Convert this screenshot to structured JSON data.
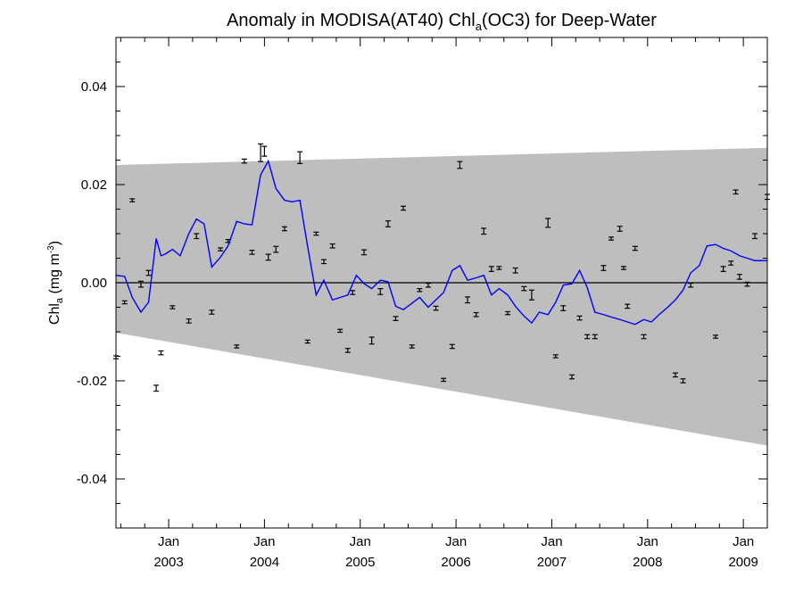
{
  "chart_data": {
    "type": "line",
    "title": {
      "prefix": "Anomaly in MODISA(AT40) Chl",
      "subscript": "a",
      "suffix": "(OC3) for Deep-Water"
    },
    "ylabel": {
      "main": "Chl",
      "subscript": "a",
      "unit_open": " (mg m",
      "superscript": "-3",
      "unit_close": ")"
    },
    "xlim": [
      2002.45,
      2009.25
    ],
    "ylim": [
      -0.05,
      0.05
    ],
    "grid": false,
    "y_ticks": [
      {
        "value": 0.04,
        "label": "0.04"
      },
      {
        "value": 0.02,
        "label": "0.02"
      },
      {
        "value": 0.0,
        "label": "0.00"
      },
      {
        "value": -0.02,
        "label": "-0.02"
      },
      {
        "value": -0.04,
        "label": "-0.04"
      }
    ],
    "x_ticks": [
      {
        "value": 2003.0,
        "month": "Jan",
        "year": "2003"
      },
      {
        "value": 2004.0,
        "month": "Jan",
        "year": "2004"
      },
      {
        "value": 2005.0,
        "month": "Jan",
        "year": "2005"
      },
      {
        "value": 2006.0,
        "month": "Jan",
        "year": "2006"
      },
      {
        "value": 2007.0,
        "month": "Jan",
        "year": "2007"
      },
      {
        "value": 2008.0,
        "month": "Jan",
        "year": "2008"
      },
      {
        "value": 2009.0,
        "month": "Jan",
        "year": "2009"
      }
    ],
    "band": {
      "x": [
        2002.45,
        2009.25
      ],
      "upper": [
        0.024,
        0.0275
      ],
      "lower": [
        -0.0102,
        -0.0332
      ],
      "color": "#bebebe"
    },
    "zero_line": 0.0,
    "series": [
      {
        "color": "#0000ff",
        "x": [
          2002.45,
          2002.54,
          2002.62,
          2002.71,
          2002.79,
          2002.87,
          2002.92,
          2002.96,
          2003.04,
          2003.12,
          2003.21,
          2003.29,
          2003.37,
          2003.45,
          2003.54,
          2003.62,
          2003.71,
          2003.79,
          2003.87,
          2003.96,
          2004.04,
          2004.12,
          2004.21,
          2004.29,
          2004.37,
          2004.45,
          2004.54,
          2004.62,
          2004.71,
          2004.79,
          2004.87,
          2004.96,
          2005.04,
          2005.12,
          2005.21,
          2005.29,
          2005.37,
          2005.45,
          2005.54,
          2005.62,
          2005.71,
          2005.79,
          2005.87,
          2005.96,
          2006.04,
          2006.12,
          2006.21,
          2006.29,
          2006.37,
          2006.45,
          2006.54,
          2006.62,
          2006.71,
          2006.79,
          2006.87,
          2006.96,
          2007.04,
          2007.12,
          2007.21,
          2007.29,
          2007.37,
          2007.45,
          2007.54,
          2007.62,
          2007.71,
          2007.79,
          2007.87,
          2007.96,
          2008.04,
          2008.12,
          2008.21,
          2008.29,
          2008.37,
          2008.45,
          2008.54,
          2008.62,
          2008.71,
          2008.79,
          2008.87,
          2008.96,
          2009.04,
          2009.12,
          2009.21,
          2009.25
        ],
        "y": [
          0.0015,
          0.0013,
          -0.003,
          -0.006,
          -0.004,
          0.009,
          0.0055,
          0.0058,
          0.0068,
          0.0055,
          0.01,
          0.013,
          0.012,
          0.0032,
          0.0052,
          0.0075,
          0.0125,
          0.012,
          0.0118,
          0.022,
          0.0248,
          0.0192,
          0.0168,
          0.0165,
          0.0168,
          0.0075,
          -0.0025,
          0.0005,
          -0.0035,
          -0.003,
          -0.0025,
          0.0015,
          -0.0002,
          -0.0012,
          0.0005,
          0.0002,
          -0.0048,
          -0.0055,
          -0.0042,
          -0.003,
          -0.005,
          -0.0035,
          -0.002,
          0.0025,
          0.0035,
          0.0005,
          0.001,
          0.0015,
          -0.0025,
          -0.0012,
          -0.0025,
          -0.0048,
          -0.0068,
          -0.0082,
          -0.006,
          -0.0065,
          -0.004,
          -0.0005,
          -0.0002,
          0.0025,
          -0.001,
          -0.006,
          -0.0065,
          -0.007,
          -0.0075,
          -0.008,
          -0.0085,
          -0.0075,
          -0.008,
          -0.0065,
          -0.005,
          -0.0035,
          -0.0015,
          0.002,
          0.0035,
          0.0075,
          0.0078,
          0.007,
          0.0065,
          0.0055,
          0.005,
          0.0045,
          0.0045,
          0.0045
        ]
      }
    ],
    "error_bars": {
      "color": "#000000",
      "points": [
        {
          "x": 2002.45,
          "y": -0.0152,
          "err": 0.0003
        },
        {
          "x": 2002.54,
          "y": -0.004,
          "err": 0.0003
        },
        {
          "x": 2002.62,
          "y": 0.0168,
          "err": 0.0003
        },
        {
          "x": 2002.71,
          "y": -0.0003,
          "err": 0.0006
        },
        {
          "x": 2002.79,
          "y": 0.002,
          "err": 0.0005
        },
        {
          "x": 2002.87,
          "y": -0.0215,
          "err": 0.0006
        },
        {
          "x": 2002.92,
          "y": -0.0143,
          "err": 0.0004
        },
        {
          "x": 2003.04,
          "y": -0.005,
          "err": 0.0003
        },
        {
          "x": 2003.21,
          "y": -0.0078,
          "err": 0.0004
        },
        {
          "x": 2003.29,
          "y": 0.0095,
          "err": 0.0005
        },
        {
          "x": 2003.45,
          "y": -0.006,
          "err": 0.0004
        },
        {
          "x": 2003.54,
          "y": 0.0068,
          "err": 0.0003
        },
        {
          "x": 2003.62,
          "y": 0.0085,
          "err": 0.0003
        },
        {
          "x": 2003.71,
          "y": -0.013,
          "err": 0.0003
        },
        {
          "x": 2003.79,
          "y": 0.0248,
          "err": 0.0004
        },
        {
          "x": 2003.87,
          "y": 0.0062,
          "err": 0.0004
        },
        {
          "x": 2003.96,
          "y": 0.0265,
          "err": 0.0018
        },
        {
          "x": 2004.0,
          "y": 0.0268,
          "err": 0.001
        },
        {
          "x": 2004.04,
          "y": 0.0052,
          "err": 0.0006
        },
        {
          "x": 2004.12,
          "y": 0.0068,
          "err": 0.0006
        },
        {
          "x": 2004.21,
          "y": 0.011,
          "err": 0.0004
        },
        {
          "x": 2004.37,
          "y": 0.0255,
          "err": 0.0012
        },
        {
          "x": 2004.45,
          "y": -0.012,
          "err": 0.0003
        },
        {
          "x": 2004.54,
          "y": 0.01,
          "err": 0.0003
        },
        {
          "x": 2004.62,
          "y": 0.0043,
          "err": 0.0004
        },
        {
          "x": 2004.71,
          "y": 0.0075,
          "err": 0.0004
        },
        {
          "x": 2004.79,
          "y": -0.0098,
          "err": 0.0003
        },
        {
          "x": 2004.87,
          "y": -0.0138,
          "err": 0.0004
        },
        {
          "x": 2004.92,
          "y": -0.002,
          "err": 0.0004
        },
        {
          "x": 2005.04,
          "y": 0.0062,
          "err": 0.0005
        },
        {
          "x": 2005.12,
          "y": -0.0118,
          "err": 0.0007
        },
        {
          "x": 2005.21,
          "y": -0.0018,
          "err": 0.0006
        },
        {
          "x": 2005.29,
          "y": 0.012,
          "err": 0.0006
        },
        {
          "x": 2005.37,
          "y": -0.0073,
          "err": 0.0004
        },
        {
          "x": 2005.45,
          "y": 0.0152,
          "err": 0.0004
        },
        {
          "x": 2005.54,
          "y": -0.013,
          "err": 0.0003
        },
        {
          "x": 2005.62,
          "y": -0.0015,
          "err": 0.0003
        },
        {
          "x": 2005.71,
          "y": -0.0005,
          "err": 0.0004
        },
        {
          "x": 2005.79,
          "y": -0.0052,
          "err": 0.0004
        },
        {
          "x": 2005.87,
          "y": -0.0198,
          "err": 0.0003
        },
        {
          "x": 2005.96,
          "y": -0.013,
          "err": 0.0004
        },
        {
          "x": 2006.04,
          "y": 0.024,
          "err": 0.0007
        },
        {
          "x": 2006.12,
          "y": -0.0035,
          "err": 0.0006
        },
        {
          "x": 2006.21,
          "y": -0.0065,
          "err": 0.0004
        },
        {
          "x": 2006.29,
          "y": 0.0105,
          "err": 0.0006
        },
        {
          "x": 2006.37,
          "y": 0.0028,
          "err": 0.0005
        },
        {
          "x": 2006.45,
          "y": 0.003,
          "err": 0.0003
        },
        {
          "x": 2006.54,
          "y": -0.0062,
          "err": 0.0003
        },
        {
          "x": 2006.62,
          "y": 0.0025,
          "err": 0.0005
        },
        {
          "x": 2006.71,
          "y": -0.0012,
          "err": 0.0004
        },
        {
          "x": 2006.79,
          "y": -0.0025,
          "err": 0.001
        },
        {
          "x": 2006.96,
          "y": 0.0122,
          "err": 0.0009
        },
        {
          "x": 2007.04,
          "y": -0.015,
          "err": 0.0003
        },
        {
          "x": 2007.12,
          "y": -0.0052,
          "err": 0.0005
        },
        {
          "x": 2007.21,
          "y": -0.0192,
          "err": 0.0004
        },
        {
          "x": 2007.29,
          "y": -0.0072,
          "err": 0.0004
        },
        {
          "x": 2007.37,
          "y": -0.011,
          "err": 0.0004
        },
        {
          "x": 2007.45,
          "y": -0.011,
          "err": 0.0004
        },
        {
          "x": 2007.54,
          "y": 0.003,
          "err": 0.0005
        },
        {
          "x": 2007.62,
          "y": 0.009,
          "err": 0.0003
        },
        {
          "x": 2007.71,
          "y": 0.011,
          "err": 0.0005
        },
        {
          "x": 2007.75,
          "y": 0.003,
          "err": 0.0003
        },
        {
          "x": 2007.79,
          "y": -0.0048,
          "err": 0.0004
        },
        {
          "x": 2007.87,
          "y": 0.007,
          "err": 0.0004
        },
        {
          "x": 2007.96,
          "y": -0.011,
          "err": 0.0004
        },
        {
          "x": 2008.29,
          "y": -0.0188,
          "err": 0.0004
        },
        {
          "x": 2008.37,
          "y": -0.02,
          "err": 0.0004
        },
        {
          "x": 2008.45,
          "y": -0.0005,
          "err": 0.0004
        },
        {
          "x": 2008.71,
          "y": -0.011,
          "err": 0.0003
        },
        {
          "x": 2008.79,
          "y": 0.0028,
          "err": 0.0005
        },
        {
          "x": 2008.87,
          "y": 0.004,
          "err": 0.0004
        },
        {
          "x": 2008.92,
          "y": 0.0185,
          "err": 0.0004
        },
        {
          "x": 2008.96,
          "y": 0.0012,
          "err": 0.0005
        },
        {
          "x": 2009.04,
          "y": -0.0003,
          "err": 0.0004
        },
        {
          "x": 2009.12,
          "y": 0.0095,
          "err": 0.0005
        },
        {
          "x": 2009.25,
          "y": 0.0175,
          "err": 0.0005
        }
      ]
    }
  }
}
